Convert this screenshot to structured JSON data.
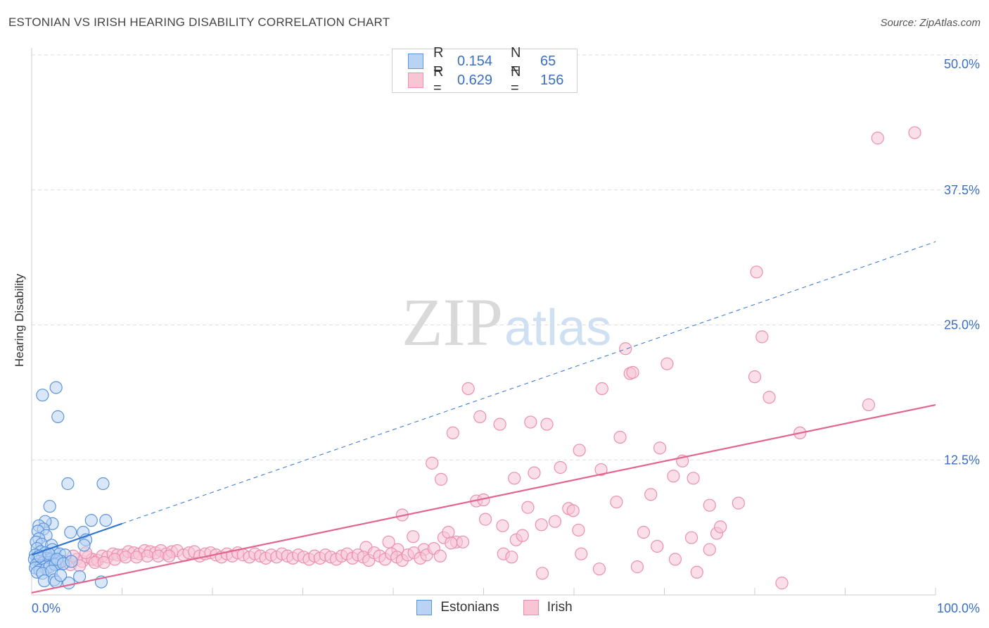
{
  "header": {
    "title": "ESTONIAN VS IRISH HEARING DISABILITY CORRELATION CHART",
    "source": "Source: ZipAtlas.com"
  },
  "watermark": {
    "part1": "ZIP",
    "part2": "atlas"
  },
  "colors": {
    "estonian_fill": "#b9d3f4",
    "estonian_stroke": "#5b95dc",
    "estonian_line": "#2f74d0",
    "irish_fill": "#f8c5d5",
    "irish_stroke": "#eb8fae",
    "irish_line": "#e2658f",
    "axis_label": "#3a6fc4",
    "grid": "#dddddd"
  },
  "legend": {
    "rows": [
      {
        "r_label": "R =",
        "r_value": "0.154",
        "n_label": "N =",
        "n_value": "65"
      },
      {
        "r_label": "R =",
        "r_value": "0.629",
        "n_label": "N =",
        "n_value": "156"
      }
    ]
  },
  "chart_data": {
    "type": "scatter",
    "title": "ESTONIAN VS IRISH HEARING DISABILITY CORRELATION CHART",
    "xlabel": "",
    "ylabel": "Hearing Disability",
    "xlim": [
      0,
      100
    ],
    "ylim": [
      0,
      50
    ],
    "x_tick_labels": [
      "0.0%",
      "100.0%"
    ],
    "y_ticks": [
      12.5,
      25.0,
      37.5,
      50.0
    ],
    "y_tick_labels": [
      "12.5%",
      "25.0%",
      "37.5%",
      "50.0%"
    ],
    "grid": true,
    "legend_position": "bottom-center",
    "series": [
      {
        "name": "Estonians",
        "r": 0.154,
        "n": 65,
        "trend": {
          "solid_x": [
            0,
            10
          ],
          "dashed_x": [
            10,
            100
          ],
          "y_at_x0": 3.7,
          "slope": 0.29
        },
        "points": [
          [
            1.2,
            18.5
          ],
          [
            2.7,
            19.2
          ],
          [
            2.9,
            16.5
          ],
          [
            4.0,
            10.3
          ],
          [
            7.9,
            10.3
          ],
          [
            2.0,
            8.2
          ],
          [
            2.3,
            6.6
          ],
          [
            1.5,
            6.8
          ],
          [
            0.8,
            6.4
          ],
          [
            1.3,
            6.1
          ],
          [
            0.7,
            5.9
          ],
          [
            1.6,
            5.5
          ],
          [
            0.8,
            5.2
          ],
          [
            4.3,
            5.8
          ],
          [
            5.7,
            5.8
          ],
          [
            6.0,
            5.1
          ],
          [
            5.8,
            4.6
          ],
          [
            6.6,
            6.9
          ],
          [
            8.2,
            6.9
          ],
          [
            0.5,
            4.9
          ],
          [
            1.1,
            4.7
          ],
          [
            2.2,
            4.6
          ],
          [
            2.3,
            4.2
          ],
          [
            2.6,
            3.9
          ],
          [
            3.1,
            3.8
          ],
          [
            3.7,
            3.7
          ],
          [
            0.6,
            4.3
          ],
          [
            1.0,
            4.0
          ],
          [
            1.5,
            3.9
          ],
          [
            0.4,
            3.7
          ],
          [
            0.7,
            3.5
          ],
          [
            1.2,
            3.4
          ],
          [
            1.7,
            3.4
          ],
          [
            2.1,
            3.3
          ],
          [
            2.5,
            3.2
          ],
          [
            0.3,
            3.3
          ],
          [
            0.8,
            3.1
          ],
          [
            1.3,
            3.0
          ],
          [
            1.8,
            3.0
          ],
          [
            2.4,
            2.9
          ],
          [
            2.9,
            2.9
          ],
          [
            3.3,
            3.1
          ],
          [
            0.5,
            2.8
          ],
          [
            1.0,
            2.7
          ],
          [
            1.5,
            2.6
          ],
          [
            0.4,
            2.5
          ],
          [
            0.9,
            2.3
          ],
          [
            1.6,
            2.4
          ],
          [
            2.0,
            2.6
          ],
          [
            2.6,
            2.8
          ],
          [
            0.6,
            2.1
          ],
          [
            1.2,
            2.0
          ],
          [
            2.2,
            2.2
          ],
          [
            1.4,
            1.3
          ],
          [
            2.5,
            1.4
          ],
          [
            2.7,
            1.2
          ],
          [
            4.1,
            1.1
          ],
          [
            5.3,
            1.7
          ],
          [
            7.7,
            1.2
          ],
          [
            3.2,
            1.8
          ],
          [
            0.9,
            3.6
          ],
          [
            1.9,
            3.8
          ],
          [
            2.8,
            3.3
          ],
          [
            3.5,
            2.9
          ],
          [
            4.4,
            3.1
          ]
        ]
      },
      {
        "name": "Irish",
        "r": 0.629,
        "n": 156,
        "trend": {
          "x": [
            0,
            100
          ],
          "y": [
            0.2,
            17.6
          ]
        },
        "points": [
          [
            93.6,
            42.3
          ],
          [
            97.7,
            42.8
          ],
          [
            80.2,
            29.9
          ],
          [
            80.8,
            23.9
          ],
          [
            65.7,
            22.8
          ],
          [
            70.3,
            21.4
          ],
          [
            66.2,
            20.5
          ],
          [
            66.5,
            20.6
          ],
          [
            80.0,
            20.2
          ],
          [
            81.6,
            18.3
          ],
          [
            63.1,
            19.1
          ],
          [
            48.3,
            19.1
          ],
          [
            49.6,
            16.5
          ],
          [
            51.8,
            15.8
          ],
          [
            55.2,
            16.0
          ],
          [
            57.0,
            15.8
          ],
          [
            46.6,
            15.0
          ],
          [
            85.0,
            15.0
          ],
          [
            92.6,
            17.6
          ],
          [
            65.1,
            14.6
          ],
          [
            60.6,
            13.4
          ],
          [
            69.5,
            13.6
          ],
          [
            72.0,
            12.4
          ],
          [
            44.3,
            12.2
          ],
          [
            58.5,
            11.8
          ],
          [
            63.0,
            11.6
          ],
          [
            55.6,
            11.3
          ],
          [
            45.3,
            10.7
          ],
          [
            53.4,
            10.8
          ],
          [
            71.0,
            11.0
          ],
          [
            73.2,
            10.8
          ],
          [
            68.5,
            9.3
          ],
          [
            49.2,
            8.7
          ],
          [
            50.0,
            8.8
          ],
          [
            64.7,
            8.6
          ],
          [
            75.0,
            8.3
          ],
          [
            78.2,
            8.5
          ],
          [
            54.9,
            8.1
          ],
          [
            59.4,
            8.0
          ],
          [
            59.9,
            7.8
          ],
          [
            41.0,
            7.4
          ],
          [
            50.2,
            7.0
          ],
          [
            52.1,
            6.4
          ],
          [
            56.4,
            6.5
          ],
          [
            57.9,
            6.8
          ],
          [
            60.5,
            6.0
          ],
          [
            67.7,
            5.8
          ],
          [
            75.8,
            5.7
          ],
          [
            76.2,
            6.3
          ],
          [
            73.0,
            5.3
          ],
          [
            42.2,
            5.4
          ],
          [
            45.6,
            5.3
          ],
          [
            46.1,
            5.8
          ],
          [
            47.0,
            4.9
          ],
          [
            47.7,
            4.9
          ],
          [
            53.6,
            5.1
          ],
          [
            54.3,
            5.5
          ],
          [
            69.2,
            4.5
          ],
          [
            75.0,
            4.2
          ],
          [
            37.0,
            4.4
          ],
          [
            39.5,
            4.9
          ],
          [
            40.5,
            4.2
          ],
          [
            43.4,
            4.2
          ],
          [
            46.4,
            4.8
          ],
          [
            52.2,
            3.8
          ],
          [
            60.8,
            3.8
          ],
          [
            71.2,
            3.3
          ],
          [
            73.6,
            2.1
          ],
          [
            53.1,
            3.5
          ],
          [
            62.8,
            2.4
          ],
          [
            67.0,
            2.6
          ],
          [
            56.5,
            2.0
          ],
          [
            83.0,
            1.1
          ],
          [
            3.0,
            2.9
          ],
          [
            3.8,
            3.1
          ],
          [
            4.3,
            2.8
          ],
          [
            5.0,
            3.3
          ],
          [
            5.6,
            3.1
          ],
          [
            6.2,
            3.5
          ],
          [
            6.7,
            3.3
          ],
          [
            7.3,
            3.2
          ],
          [
            7.8,
            3.6
          ],
          [
            8.4,
            3.5
          ],
          [
            9.0,
            3.8
          ],
          [
            9.5,
            3.7
          ],
          [
            10.1,
            3.7
          ],
          [
            10.7,
            4.0
          ],
          [
            11.3,
            3.9
          ],
          [
            11.9,
            3.8
          ],
          [
            12.5,
            4.1
          ],
          [
            13.1,
            4.0
          ],
          [
            13.7,
            3.9
          ],
          [
            14.3,
            4.1
          ],
          [
            14.9,
            3.8
          ],
          [
            15.5,
            4.0
          ],
          [
            16.1,
            4.1
          ],
          [
            16.8,
            3.7
          ],
          [
            17.4,
            3.9
          ],
          [
            18.0,
            4.0
          ],
          [
            18.6,
            3.6
          ],
          [
            19.2,
            3.8
          ],
          [
            19.8,
            3.9
          ],
          [
            20.4,
            3.7
          ],
          [
            21.0,
            3.5
          ],
          [
            21.6,
            3.8
          ],
          [
            22.2,
            3.6
          ],
          [
            22.8,
            3.9
          ],
          [
            23.4,
            3.7
          ],
          [
            24.1,
            3.5
          ],
          [
            24.7,
            3.8
          ],
          [
            25.3,
            3.6
          ],
          [
            25.9,
            3.4
          ],
          [
            26.5,
            3.7
          ],
          [
            27.1,
            3.5
          ],
          [
            27.7,
            3.8
          ],
          [
            28.3,
            3.6
          ],
          [
            28.9,
            3.4
          ],
          [
            29.5,
            3.7
          ],
          [
            30.1,
            3.5
          ],
          [
            30.7,
            3.3
          ],
          [
            31.3,
            3.6
          ],
          [
            31.9,
            3.4
          ],
          [
            32.5,
            3.7
          ],
          [
            33.1,
            3.5
          ],
          [
            33.7,
            3.3
          ],
          [
            34.3,
            3.6
          ],
          [
            34.9,
            3.8
          ],
          [
            35.5,
            3.4
          ],
          [
            36.1,
            3.7
          ],
          [
            36.7,
            3.5
          ],
          [
            37.3,
            3.2
          ],
          [
            37.9,
            3.9
          ],
          [
            38.5,
            3.6
          ],
          [
            39.1,
            3.3
          ],
          [
            39.8,
            3.8
          ],
          [
            40.4,
            3.5
          ],
          [
            41.0,
            3.2
          ],
          [
            41.6,
            3.7
          ],
          [
            42.3,
            3.9
          ],
          [
            43.0,
            3.4
          ],
          [
            43.7,
            3.7
          ],
          [
            44.5,
            4.3
          ],
          [
            45.2,
            3.6
          ],
          [
            4.6,
            3.6
          ],
          [
            5.3,
            2.7
          ],
          [
            6.0,
            3.9
          ],
          [
            7.0,
            3.0
          ],
          [
            8.0,
            3.0
          ],
          [
            9.2,
            3.3
          ],
          [
            10.4,
            3.5
          ],
          [
            11.6,
            3.5
          ],
          [
            12.8,
            3.6
          ],
          [
            14.0,
            3.6
          ],
          [
            15.2,
            3.6
          ],
          [
            1.5,
            2.8
          ],
          [
            2.1,
            3.4
          ]
        ]
      }
    ]
  },
  "bottom_legend": [
    {
      "label": "Estonians"
    },
    {
      "label": "Irish"
    }
  ]
}
